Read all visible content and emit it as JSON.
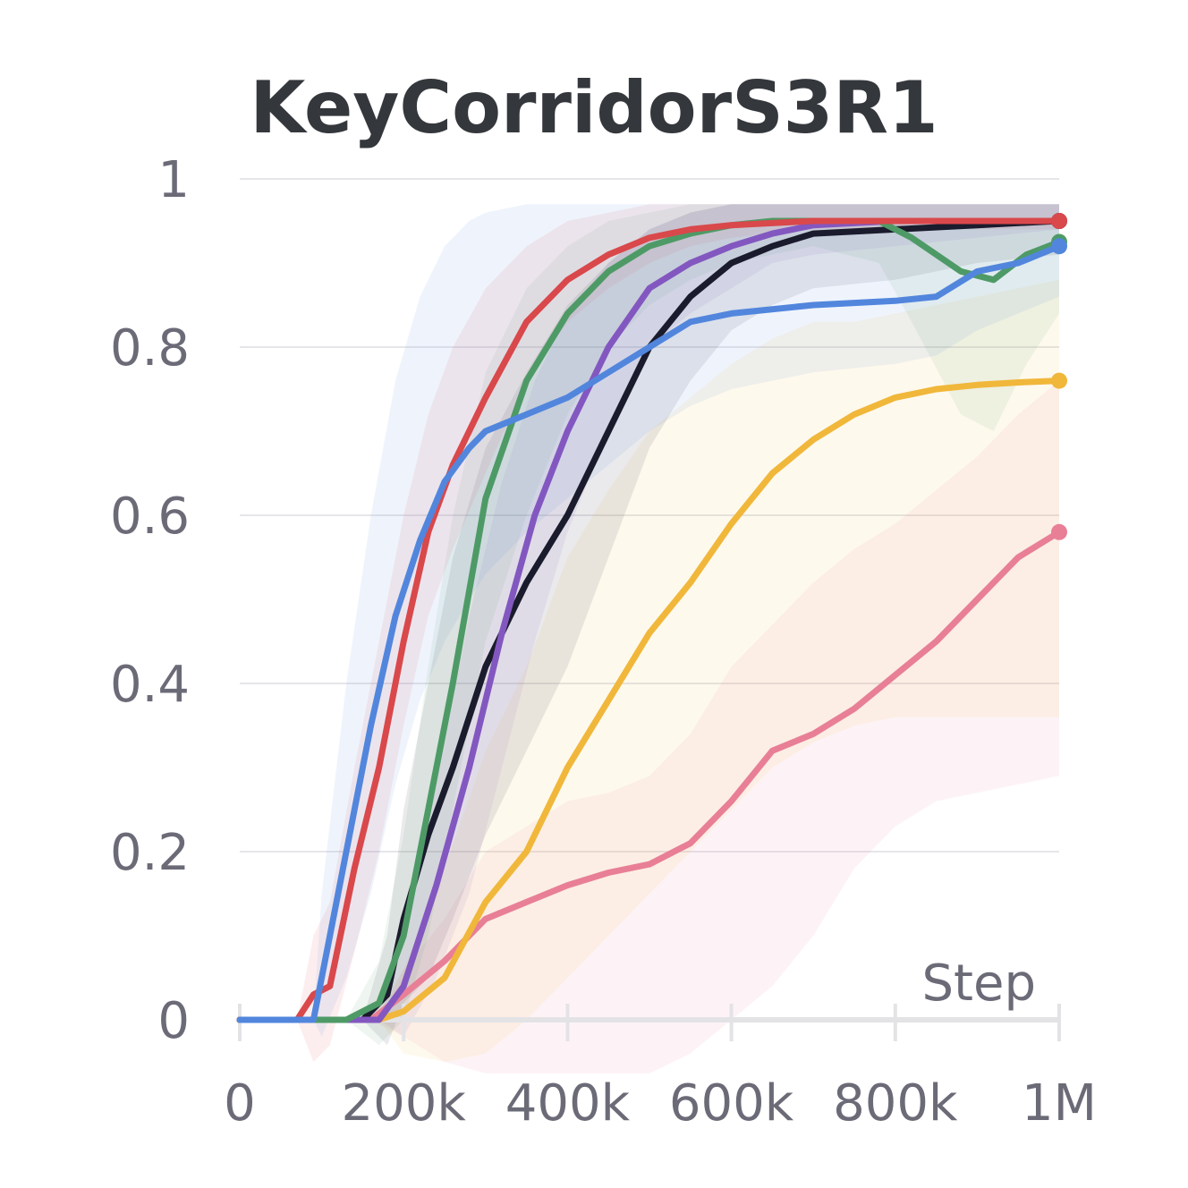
{
  "chart_data": {
    "type": "line",
    "title": "KeyCorridorS3R1",
    "xlabel": "Step",
    "ylabel": "",
    "xlim": [
      0,
      1000000
    ],
    "ylim": [
      0,
      1
    ],
    "x_ticks": [
      {
        "value": 0,
        "label": "0"
      },
      {
        "value": 200000,
        "label": "200k"
      },
      {
        "value": 400000,
        "label": "400k"
      },
      {
        "value": 600000,
        "label": "600k"
      },
      {
        "value": 800000,
        "label": "800k"
      },
      {
        "value": 1000000,
        "label": "1M"
      }
    ],
    "y_ticks": [
      {
        "value": 0,
        "label": "0"
      },
      {
        "value": 0.2,
        "label": "0.2"
      },
      {
        "value": 0.4,
        "label": "0.4"
      },
      {
        "value": 0.6,
        "label": "0.6"
      },
      {
        "value": 0.8,
        "label": "0.8"
      },
      {
        "value": 1,
        "label": "1"
      }
    ],
    "grid": true,
    "series": [
      {
        "name": "pink",
        "color": "#e87f96",
        "x": [
          0,
          160000,
          200000,
          250000,
          300000,
          350000,
          400000,
          450000,
          500000,
          550000,
          600000,
          650000,
          700000,
          750000,
          800000,
          850000,
          900000,
          950000,
          1000000
        ],
        "y": [
          0,
          0,
          0.03,
          0.07,
          0.12,
          0.14,
          0.16,
          0.175,
          0.185,
          0.21,
          0.26,
          0.32,
          0.34,
          0.37,
          0.41,
          0.45,
          0.5,
          0.55,
          0.58
        ],
        "lower": [
          0,
          0,
          -0.02,
          -0.05,
          -0.08,
          -0.1,
          -0.1,
          -0.09,
          -0.07,
          -0.04,
          0.0,
          0.04,
          0.1,
          0.18,
          0.23,
          0.26,
          0.27,
          0.28,
          0.29
        ],
        "upper": [
          0,
          0,
          0.06,
          0.12,
          0.2,
          0.23,
          0.26,
          0.27,
          0.29,
          0.34,
          0.42,
          0.47,
          0.52,
          0.56,
          0.59,
          0.63,
          0.67,
          0.72,
          0.76
        ]
      },
      {
        "name": "yellow",
        "color": "#f0b73a",
        "x": [
          0,
          170000,
          200000,
          250000,
          300000,
          350000,
          400000,
          450000,
          500000,
          550000,
          600000,
          650000,
          700000,
          750000,
          800000,
          850000,
          900000,
          950000,
          1000000
        ],
        "y": [
          0,
          0,
          0.01,
          0.05,
          0.14,
          0.2,
          0.3,
          0.38,
          0.46,
          0.52,
          0.59,
          0.65,
          0.69,
          0.72,
          0.74,
          0.75,
          0.755,
          0.758,
          0.76
        ],
        "lower": [
          0,
          0,
          -0.04,
          -0.05,
          -0.04,
          0.0,
          0.05,
          0.1,
          0.15,
          0.2,
          0.25,
          0.3,
          0.33,
          0.35,
          0.36,
          0.36,
          0.36,
          0.36,
          0.36
        ],
        "upper": [
          0,
          0,
          0.06,
          0.18,
          0.32,
          0.42,
          0.55,
          0.63,
          0.7,
          0.74,
          0.78,
          0.81,
          0.83,
          0.83,
          0.84,
          0.85,
          0.86,
          0.87,
          0.88
        ]
      },
      {
        "name": "black",
        "color": "#1a1b2c",
        "x": [
          0,
          150000,
          180000,
          200000,
          230000,
          260000,
          300000,
          350000,
          400000,
          450000,
          500000,
          550000,
          600000,
          650000,
          700000,
          800000,
          900000,
          1000000
        ],
        "y": [
          0,
          0,
          0.03,
          0.12,
          0.22,
          0.3,
          0.42,
          0.52,
          0.6,
          0.7,
          0.8,
          0.86,
          0.9,
          0.92,
          0.935,
          0.94,
          0.945,
          0.95
        ],
        "lower": [
          0,
          0,
          -0.03,
          0.02,
          0.05,
          0.12,
          0.22,
          0.32,
          0.42,
          0.55,
          0.68,
          0.76,
          0.82,
          0.85,
          0.87,
          0.88,
          0.9,
          0.91
        ],
        "upper": [
          0,
          0,
          0.1,
          0.25,
          0.4,
          0.55,
          0.68,
          0.77,
          0.85,
          0.9,
          0.94,
          0.96,
          0.97,
          0.97,
          0.97,
          0.97,
          0.97,
          0.97
        ]
      },
      {
        "name": "purple",
        "color": "#8357c0",
        "x": [
          0,
          170000,
          200000,
          240000,
          280000,
          320000,
          360000,
          400000,
          450000,
          500000,
          550000,
          600000,
          650000,
          700000,
          800000,
          900000,
          1000000
        ],
        "y": [
          0,
          0,
          0.04,
          0.16,
          0.3,
          0.46,
          0.6,
          0.7,
          0.8,
          0.87,
          0.9,
          0.92,
          0.935,
          0.945,
          0.95,
          0.95,
          0.95
        ],
        "lower": [
          0,
          0,
          -0.02,
          0.05,
          0.15,
          0.3,
          0.45,
          0.58,
          0.7,
          0.8,
          0.84,
          0.87,
          0.9,
          0.91,
          0.92,
          0.93,
          0.94
        ],
        "upper": [
          0,
          0,
          0.1,
          0.28,
          0.48,
          0.64,
          0.76,
          0.84,
          0.9,
          0.94,
          0.96,
          0.97,
          0.97,
          0.97,
          0.97,
          0.97,
          0.97
        ]
      },
      {
        "name": "green",
        "color": "#4e9a66",
        "x": [
          0,
          130000,
          170000,
          200000,
          230000,
          260000,
          300000,
          350000,
          400000,
          450000,
          500000,
          550000,
          600000,
          650000,
          700000,
          780000,
          820000,
          880000,
          920000,
          960000,
          1000000
        ],
        "y": [
          0,
          0,
          0.02,
          0.1,
          0.25,
          0.4,
          0.62,
          0.76,
          0.84,
          0.89,
          0.92,
          0.935,
          0.945,
          0.95,
          0.95,
          0.95,
          0.93,
          0.89,
          0.88,
          0.91,
          0.925
        ],
        "lower": [
          0,
          0,
          -0.03,
          0.0,
          0.1,
          0.25,
          0.45,
          0.6,
          0.72,
          0.8,
          0.85,
          0.88,
          0.9,
          0.91,
          0.92,
          0.9,
          0.83,
          0.72,
          0.7,
          0.78,
          0.84
        ],
        "upper": [
          0,
          0,
          0.07,
          0.22,
          0.42,
          0.6,
          0.77,
          0.87,
          0.92,
          0.95,
          0.96,
          0.97,
          0.97,
          0.97,
          0.97,
          0.97,
          0.97,
          0.97,
          0.97,
          0.97,
          0.97
        ]
      },
      {
        "name": "red",
        "color": "#d9484b",
        "x": [
          0,
          70000,
          90000,
          110000,
          140000,
          170000,
          200000,
          230000,
          260000,
          300000,
          350000,
          400000,
          450000,
          500000,
          550000,
          600000,
          700000,
          800000,
          1000000
        ],
        "y": [
          0,
          0,
          0.03,
          0.04,
          0.18,
          0.3,
          0.45,
          0.58,
          0.66,
          0.74,
          0.83,
          0.88,
          0.91,
          0.93,
          0.94,
          0.945,
          0.95,
          0.95,
          0.95
        ],
        "lower": [
          0,
          0,
          -0.05,
          -0.03,
          0.08,
          0.2,
          0.35,
          0.48,
          0.56,
          0.65,
          0.76,
          0.83,
          0.87,
          0.9,
          0.92,
          0.93,
          0.94,
          0.94,
          0.94
        ],
        "upper": [
          0,
          0,
          0.1,
          0.14,
          0.3,
          0.45,
          0.6,
          0.72,
          0.8,
          0.87,
          0.92,
          0.95,
          0.96,
          0.97,
          0.97,
          0.97,
          0.97,
          0.97,
          0.97
        ]
      },
      {
        "name": "blue",
        "color": "#5286dd",
        "x": [
          0,
          90000,
          100000,
          130000,
          160000,
          190000,
          220000,
          250000,
          280000,
          300000,
          350000,
          400000,
          450000,
          500000,
          550000,
          600000,
          700000,
          800000,
          850000,
          900000,
          950000,
          1000000
        ],
        "y": [
          0,
          0,
          0.05,
          0.2,
          0.35,
          0.48,
          0.57,
          0.64,
          0.68,
          0.7,
          0.72,
          0.74,
          0.77,
          0.8,
          0.83,
          0.84,
          0.85,
          0.855,
          0.86,
          0.89,
          0.9,
          0.92
        ],
        "lower": [
          0,
          0,
          -0.02,
          0.05,
          0.15,
          0.28,
          0.38,
          0.45,
          0.5,
          0.53,
          0.58,
          0.62,
          0.66,
          0.7,
          0.73,
          0.75,
          0.77,
          0.78,
          0.79,
          0.82,
          0.84,
          0.86
        ],
        "upper": [
          0,
          0,
          0.15,
          0.4,
          0.6,
          0.76,
          0.86,
          0.92,
          0.95,
          0.96,
          0.97,
          0.97,
          0.97,
          0.97,
          0.97,
          0.97,
          0.97,
          0.97,
          0.97,
          0.97,
          0.97,
          0.97
        ]
      }
    ]
  }
}
